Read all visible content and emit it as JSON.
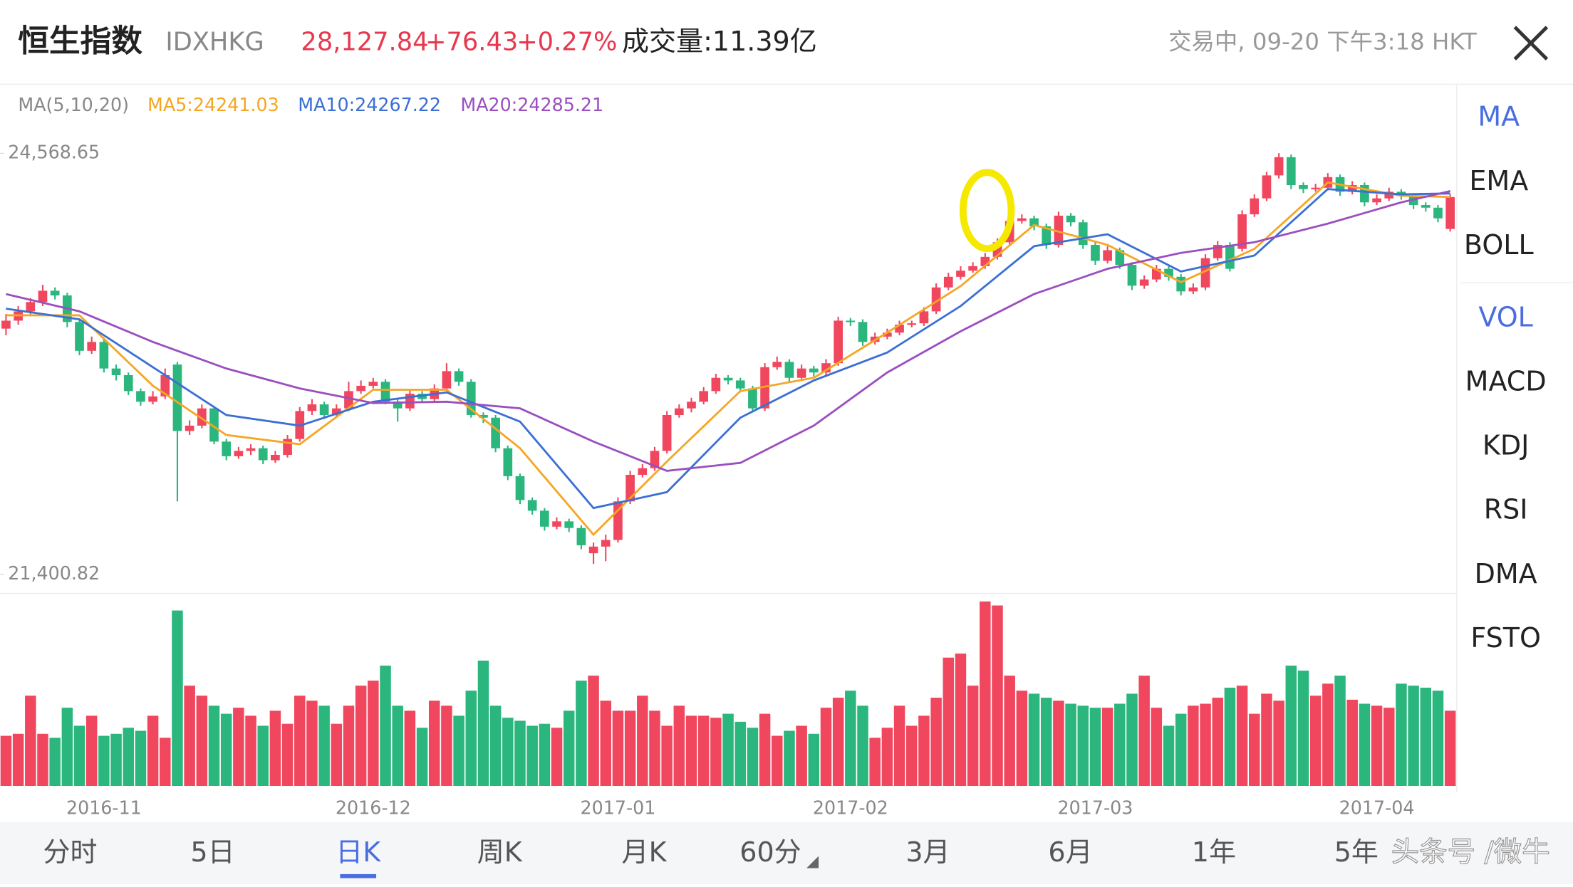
{
  "header": {
    "title": "恒生指数",
    "code": "IDXHKG",
    "price": "28,127.84",
    "change": "+76.43",
    "percent": "+0.27%",
    "volume": "成交量:11.39亿",
    "status": "交易中, 09-20 下午3:18 HKT"
  },
  "ma_legend": {
    "params": "MA(5,10,20)",
    "ma5": "MA5:24241.03",
    "ma10": "MA10:24267.22",
    "ma20": "MA20:24285.21"
  },
  "side_menu": [
    "MA",
    "EMA",
    "BOLL",
    "VOL",
    "MACD",
    "KDJ",
    "RSI",
    "DMA",
    "FSTO"
  ],
  "tabs": [
    "分时",
    "5日",
    "日K",
    "周K",
    "月K",
    "60分",
    "3月",
    "6月",
    "1年",
    "5年"
  ],
  "watermark": "头条号 /微牛",
  "chart_data": {
    "type": "candlestick",
    "up_color": "#f0475e",
    "down_color": "#2bb67e",
    "ylim": [
      21400.82,
      24568.65
    ],
    "yticks": [
      {
        "value": 21400.82,
        "label": "21,400.82"
      },
      {
        "value": 24568.65,
        "label": "24,568.65"
      }
    ],
    "categories": [
      null,
      null,
      null,
      null,
      null,
      null,
      null,
      null,
      "2016-11",
      null,
      null,
      null,
      null,
      null,
      null,
      null,
      null,
      null,
      null,
      null,
      null,
      null,
      null,
      null,
      null,
      null,
      null,
      null,
      null,
      null,
      "2016-12",
      null,
      null,
      null,
      null,
      null,
      null,
      null,
      null,
      null,
      null,
      null,
      null,
      null,
      null,
      null,
      null,
      null,
      null,
      null,
      "2017-01",
      null,
      null,
      null,
      null,
      null,
      null,
      null,
      null,
      null,
      null,
      null,
      null,
      null,
      null,
      null,
      null,
      null,
      null,
      "2017-02",
      null,
      null,
      null,
      null,
      null,
      null,
      null,
      null,
      null,
      null,
      null,
      null,
      null,
      null,
      null,
      null,
      null,
      null,
      null,
      "2017-03",
      null,
      null,
      null,
      null,
      null,
      null,
      null,
      null,
      null,
      null,
      null,
      null,
      null,
      null,
      null,
      null,
      null,
      null,
      null,
      null,
      null,
      null,
      "2017-04",
      null,
      null,
      null,
      null,
      null,
      null
    ],
    "candles": [
      [
        23250,
        23360,
        23200,
        23310
      ],
      [
        23310,
        23420,
        23280,
        23380
      ],
      [
        23380,
        23480,
        23350,
        23450
      ],
      [
        23450,
        23580,
        23420,
        23535
      ],
      [
        23535,
        23560,
        23470,
        23500
      ],
      [
        23500,
        23520,
        23260,
        23300
      ],
      [
        23300,
        23320,
        23050,
        23083
      ],
      [
        23083,
        23190,
        23060,
        23150
      ],
      [
        23150,
        23170,
        22920,
        22950
      ],
      [
        22950,
        22980,
        22860,
        22900
      ],
      [
        22900,
        22920,
        22750,
        22780
      ],
      [
        22780,
        22800,
        22670,
        22700
      ],
      [
        22700,
        22780,
        22680,
        22740
      ],
      [
        22740,
        22950,
        22720,
        22900
      ],
      [
        22980,
        23000,
        21950,
        22480
      ],
      [
        22480,
        22560,
        22450,
        22520
      ],
      [
        22520,
        22680,
        22500,
        22650
      ],
      [
        22650,
        22660,
        22380,
        22400
      ],
      [
        22400,
        22420,
        22260,
        22290
      ],
      [
        22290,
        22360,
        22270,
        22330
      ],
      [
        22330,
        22380,
        22300,
        22350
      ],
      [
        22350,
        22370,
        22230,
        22260
      ],
      [
        22260,
        22330,
        22240,
        22300
      ],
      [
        22300,
        22450,
        22280,
        22420
      ],
      [
        22420,
        22660,
        22400,
        22630
      ],
      [
        22630,
        22720,
        22600,
        22680
      ],
      [
        22680,
        22700,
        22570,
        22600
      ],
      [
        22600,
        22680,
        22580,
        22650
      ],
      [
        22650,
        22850,
        22630,
        22780
      ],
      [
        22780,
        22860,
        22760,
        22820
      ],
      [
        22820,
        22880,
        22800,
        22850
      ],
      [
        22850,
        22870,
        22680,
        22700
      ],
      [
        22700,
        22720,
        22550,
        22650
      ],
      [
        22650,
        22790,
        22630,
        22760
      ],
      [
        22760,
        22780,
        22700,
        22720
      ],
      [
        22720,
        22830,
        22700,
        22800
      ],
      [
        22800,
        22990,
        22780,
        22930
      ],
      [
        22930,
        22950,
        22820,
        22850
      ],
      [
        22850,
        22870,
        22580,
        22600
      ],
      [
        22600,
        22620,
        22540,
        22580
      ],
      [
        22580,
        22600,
        22320,
        22350
      ],
      [
        22350,
        22370,
        22110,
        22140
      ],
      [
        22140,
        22160,
        21930,
        21960
      ],
      [
        21960,
        21980,
        21850,
        21880
      ],
      [
        21880,
        21900,
        21730,
        21760
      ],
      [
        21760,
        21830,
        21740,
        21800
      ],
      [
        21800,
        21820,
        21720,
        21750
      ],
      [
        21750,
        21770,
        21590,
        21620
      ],
      [
        21560,
        21640,
        21480,
        21610
      ],
      [
        21610,
        21700,
        21500,
        21660
      ],
      [
        21660,
        21980,
        21640,
        21950
      ],
      [
        21950,
        22180,
        21930,
        22150
      ],
      [
        22150,
        22230,
        22130,
        22200
      ],
      [
        22200,
        22360,
        22180,
        22330
      ],
      [
        22330,
        22630,
        22310,
        22600
      ],
      [
        22600,
        22680,
        22580,
        22650
      ],
      [
        22650,
        22730,
        22620,
        22700
      ],
      [
        22700,
        22810,
        22680,
        22780
      ],
      [
        22780,
        22910,
        22760,
        22880
      ],
      [
        22880,
        22900,
        22830,
        22860
      ],
      [
        22860,
        22880,
        22770,
        22800
      ],
      [
        22800,
        22820,
        22620,
        22650
      ],
      [
        22650,
        22990,
        22630,
        22960
      ],
      [
        22960,
        23040,
        22940,
        23000
      ],
      [
        23000,
        23020,
        22850,
        22880
      ],
      [
        22880,
        22980,
        22860,
        22950
      ],
      [
        22950,
        22970,
        22890,
        22920
      ],
      [
        22920,
        23020,
        22900,
        22990
      ],
      [
        22990,
        23340,
        22970,
        23310
      ],
      [
        23310,
        23330,
        23270,
        23300
      ],
      [
        23300,
        23320,
        23120,
        23150
      ],
      [
        23150,
        23220,
        23130,
        23190
      ],
      [
        23190,
        23250,
        23170,
        23220
      ],
      [
        23220,
        23310,
        23200,
        23280
      ],
      [
        23280,
        23310,
        23260,
        23290
      ],
      [
        23290,
        23410,
        23270,
        23380
      ],
      [
        23380,
        23590,
        23360,
        23560
      ],
      [
        23560,
        23670,
        23540,
        23640
      ],
      [
        23640,
        23720,
        23620,
        23686
      ],
      [
        23686,
        23750,
        23670,
        23720
      ],
      [
        23720,
        23820,
        23700,
        23790
      ],
      [
        23790,
        23930,
        23770,
        23900
      ],
      [
        23900,
        24090,
        23880,
        24060
      ],
      [
        24060,
        24110,
        24040,
        24080
      ],
      [
        24080,
        24100,
        23990,
        24020
      ],
      [
        24020,
        24040,
        23850,
        23880
      ],
      [
        23880,
        24130,
        23860,
        24100
      ],
      [
        24100,
        24120,
        24020,
        24050
      ],
      [
        24050,
        24070,
        23850,
        23880
      ],
      [
        23880,
        23900,
        23730,
        23760
      ],
      [
        23760,
        23870,
        23740,
        23840
      ],
      [
        23840,
        23860,
        23700,
        23730
      ],
      [
        23730,
        23750,
        23540,
        23573
      ],
      [
        23573,
        23650,
        23550,
        23620
      ],
      [
        23620,
        23730,
        23600,
        23700
      ],
      [
        23700,
        23720,
        23610,
        23640
      ],
      [
        23640,
        23660,
        23500,
        23530
      ],
      [
        23530,
        23590,
        23510,
        23560
      ],
      [
        23560,
        23810,
        23540,
        23780
      ],
      [
        23780,
        23910,
        23760,
        23880
      ],
      [
        23880,
        23900,
        23680,
        23700
      ],
      [
        23850,
        24140,
        23830,
        24110
      ],
      [
        24110,
        24260,
        24090,
        24230
      ],
      [
        24230,
        24430,
        24210,
        24403
      ],
      [
        24403,
        24570,
        24380,
        24540
      ],
      [
        24540,
        24560,
        24300,
        24330
      ],
      [
        24330,
        24350,
        24270,
        24300
      ],
      [
        24300,
        24340,
        24280,
        24310
      ],
      [
        24310,
        24420,
        24290,
        24390
      ],
      [
        24390,
        24410,
        24250,
        24280
      ],
      [
        24280,
        24360,
        24260,
        24330
      ],
      [
        24330,
        24350,
        24170,
        24200
      ],
      [
        24200,
        24260,
        24180,
        24230
      ],
      [
        24230,
        24310,
        24210,
        24280
      ],
      [
        24280,
        24300,
        24220,
        24250
      ],
      [
        24250,
        24270,
        24150,
        24180
      ],
      [
        24180,
        24200,
        24130,
        24160
      ],
      [
        24160,
        24180,
        24050,
        24080
      ],
      [
        24000,
        24260,
        23980,
        24240
      ]
    ],
    "volumes": [
      50,
      52,
      90,
      52,
      48,
      78,
      60,
      70,
      50,
      52,
      58,
      55,
      70,
      48,
      175,
      100,
      90,
      80,
      72,
      78,
      70,
      60,
      75,
      62,
      90,
      85,
      80,
      62,
      80,
      100,
      105,
      120,
      80,
      75,
      58,
      85,
      80,
      70,
      95,
      125,
      80,
      68,
      65,
      60,
      62,
      58,
      75,
      105,
      110,
      85,
      75,
      75,
      90,
      75,
      60,
      80,
      70,
      70,
      68,
      72,
      64,
      58,
      72,
      50,
      55,
      60,
      52,
      78,
      88,
      95,
      80,
      48,
      58,
      80,
      60,
      70,
      88,
      128,
      132,
      100,
      184,
      180,
      110,
      95,
      92,
      88,
      85,
      82,
      80,
      78,
      78,
      82,
      92,
      110,
      78,
      60,
      72,
      80,
      82,
      88,
      98,
      100,
      72,
      92,
      85,
      120,
      115,
      90,
      102,
      110,
      86,
      82,
      80,
      78,
      102,
      100,
      98,
      95,
      75
    ],
    "series": [
      {
        "name": "MA5",
        "color": "#f5a623",
        "x": [
          0,
          6,
          12,
          18,
          24,
          30,
          36,
          42,
          48,
          54,
          60,
          66,
          72,
          78,
          84,
          90,
          96,
          102,
          108,
          114,
          118
        ],
        "values": [
          23350,
          23350,
          22820,
          22450,
          22380,
          22790,
          22790,
          22350,
          21700,
          22250,
          22780,
          22880,
          23220,
          23570,
          24030,
          23880,
          23600,
          23850,
          24350,
          24250,
          24241
        ]
      },
      {
        "name": "MA10",
        "color": "#3b6fd4",
        "x": [
          0,
          6,
          12,
          18,
          24,
          30,
          36,
          42,
          48,
          54,
          60,
          66,
          72,
          78,
          84,
          90,
          96,
          102,
          108,
          114,
          118
        ],
        "values": [
          23400,
          23320,
          22960,
          22600,
          22520,
          22700,
          22770,
          22550,
          21900,
          22020,
          22580,
          22860,
          23070,
          23420,
          23870,
          23960,
          23680,
          23800,
          24300,
          24260,
          24267
        ]
      },
      {
        "name": "MA20",
        "color": "#9b4fbf",
        "x": [
          0,
          6,
          12,
          18,
          24,
          30,
          36,
          42,
          48,
          54,
          60,
          66,
          72,
          78,
          84,
          90,
          96,
          102,
          108,
          114,
          118
        ],
        "values": [
          23510,
          23380,
          23150,
          22950,
          22800,
          22690,
          22700,
          22650,
          22400,
          22180,
          22240,
          22520,
          22920,
          23230,
          23510,
          23700,
          23820,
          23900,
          24040,
          24200,
          24285
        ]
      }
    ]
  }
}
